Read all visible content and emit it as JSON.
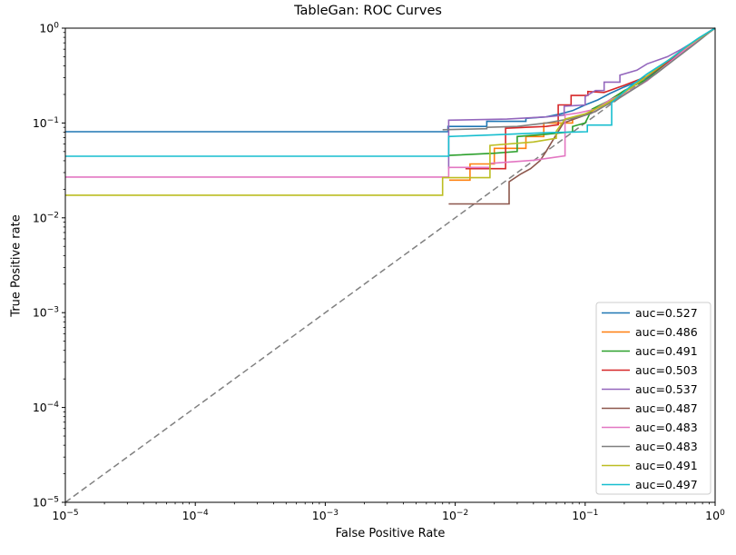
{
  "figure": {
    "title": "TableGan: ROC Curves",
    "xlabel": "False Positive Rate",
    "ylabel": "True Positive rate"
  },
  "chart_data": {
    "type": "line",
    "title": "TableGan: ROC Curves",
    "xlabel": "False Positive Rate",
    "ylabel": "True Positive rate",
    "xscale": "log",
    "yscale": "log",
    "xlim": [
      1e-05,
      1
    ],
    "ylim": [
      1e-05,
      1
    ],
    "x_tick_exponents": [
      -5,
      -4,
      -3,
      -2,
      -1,
      0
    ],
    "y_tick_exponents": [
      0,
      -1,
      -2,
      -3,
      -4,
      -5
    ],
    "grid": false,
    "legend_position": "lower right",
    "axis_color": "#000000",
    "background_color": "#ffffff",
    "reference_line": {
      "name": "chance-diagonal",
      "style": "dashed",
      "color": "#808080",
      "points": [
        [
          1e-05,
          1e-05
        ],
        [
          1,
          1
        ]
      ]
    },
    "series": [
      {
        "name": "auc=0.527",
        "auc": 0.527,
        "color": "#1f77b4",
        "points": [
          [
            1e-05,
            0.081
          ],
          [
            0.0088,
            0.081
          ],
          [
            0.0088,
            0.092
          ],
          [
            0.0175,
            0.092
          ],
          [
            0.0175,
            0.104
          ],
          [
            0.035,
            0.104
          ],
          [
            0.035,
            0.112
          ],
          [
            0.05,
            0.116
          ],
          [
            0.065,
            0.125
          ],
          [
            0.08,
            0.135
          ],
          [
            0.1,
            0.155
          ],
          [
            0.125,
            0.175
          ],
          [
            0.155,
            0.205
          ],
          [
            0.2,
            0.24
          ],
          [
            0.3,
            0.3
          ],
          [
            0.45,
            0.45
          ],
          [
            0.6,
            0.62
          ],
          [
            0.75,
            0.77
          ],
          [
            0.9,
            0.91
          ],
          [
            1,
            1
          ]
        ]
      },
      {
        "name": "auc=0.486",
        "auc": 0.486,
        "color": "#ff7f0e",
        "points": [
          [
            0.009,
            0.025
          ],
          [
            0.013,
            0.025
          ],
          [
            0.013,
            0.037
          ],
          [
            0.02,
            0.037
          ],
          [
            0.02,
            0.054
          ],
          [
            0.035,
            0.054
          ],
          [
            0.035,
            0.072
          ],
          [
            0.048,
            0.072
          ],
          [
            0.048,
            0.1
          ],
          [
            0.08,
            0.1
          ],
          [
            0.08,
            0.112
          ],
          [
            0.105,
            0.125
          ],
          [
            0.135,
            0.155
          ],
          [
            0.175,
            0.19
          ],
          [
            0.25,
            0.26
          ],
          [
            0.4,
            0.42
          ],
          [
            0.55,
            0.57
          ],
          [
            0.7,
            0.72
          ],
          [
            0.85,
            0.86
          ],
          [
            1,
            1
          ]
        ]
      },
      {
        "name": "auc=0.491",
        "auc": 0.491,
        "color": "#2ca02c",
        "points": [
          [
            0.0089,
            0.0455
          ],
          [
            0.02,
            0.048
          ],
          [
            0.03,
            0.05
          ],
          [
            0.03,
            0.072
          ],
          [
            0.05,
            0.076
          ],
          [
            0.08,
            0.081
          ],
          [
            0.08,
            0.092
          ],
          [
            0.1,
            0.1
          ],
          [
            0.113,
            0.14
          ],
          [
            0.15,
            0.17
          ],
          [
            0.2,
            0.22
          ],
          [
            0.3,
            0.29
          ],
          [
            0.45,
            0.45
          ],
          [
            0.6,
            0.62
          ],
          [
            0.75,
            0.77
          ],
          [
            0.9,
            0.91
          ],
          [
            1,
            1
          ]
        ]
      },
      {
        "name": "auc=0.503",
        "auc": 0.503,
        "color": "#d62728",
        "points": [
          [
            0.012,
            0.033
          ],
          [
            0.0244,
            0.033
          ],
          [
            0.0244,
            0.088
          ],
          [
            0.05,
            0.092
          ],
          [
            0.062,
            0.096
          ],
          [
            0.062,
            0.155
          ],
          [
            0.078,
            0.155
          ],
          [
            0.078,
            0.195
          ],
          [
            0.105,
            0.195
          ],
          [
            0.105,
            0.215
          ],
          [
            0.14,
            0.21
          ],
          [
            0.2,
            0.25
          ],
          [
            0.3,
            0.31
          ],
          [
            0.45,
            0.46
          ],
          [
            0.6,
            0.63
          ],
          [
            0.75,
            0.77
          ],
          [
            0.9,
            0.92
          ],
          [
            1,
            1
          ]
        ]
      },
      {
        "name": "auc=0.537",
        "auc": 0.537,
        "color": "#9467bd",
        "points": [
          [
            0.0089,
            0.033
          ],
          [
            0.0089,
            0.107
          ],
          [
            0.025,
            0.11
          ],
          [
            0.05,
            0.116
          ],
          [
            0.069,
            0.121
          ],
          [
            0.069,
            0.15
          ],
          [
            0.1,
            0.155
          ],
          [
            0.1,
            0.19
          ],
          [
            0.12,
            0.22
          ],
          [
            0.14,
            0.22
          ],
          [
            0.14,
            0.27
          ],
          [
            0.185,
            0.27
          ],
          [
            0.185,
            0.32
          ],
          [
            0.25,
            0.36
          ],
          [
            0.3,
            0.42
          ],
          [
            0.43,
            0.5
          ],
          [
            0.55,
            0.6
          ],
          [
            0.7,
            0.73
          ],
          [
            0.85,
            0.87
          ],
          [
            1,
            1
          ]
        ]
      },
      {
        "name": "auc=0.487",
        "auc": 0.487,
        "color": "#8c564b",
        "points": [
          [
            0.0089,
            0.014
          ],
          [
            0.026,
            0.014
          ],
          [
            0.026,
            0.024
          ],
          [
            0.032,
            0.029
          ],
          [
            0.038,
            0.033
          ],
          [
            0.045,
            0.04
          ],
          [
            0.05,
            0.05
          ],
          [
            0.058,
            0.07
          ],
          [
            0.068,
            0.1
          ],
          [
            0.09,
            0.115
          ],
          [
            0.12,
            0.132
          ],
          [
            0.15,
            0.16
          ],
          [
            0.2,
            0.2
          ],
          [
            0.3,
            0.28
          ],
          [
            0.45,
            0.44
          ],
          [
            0.6,
            0.6
          ],
          [
            0.75,
            0.75
          ],
          [
            0.9,
            0.9
          ],
          [
            1,
            1
          ]
        ]
      },
      {
        "name": "auc=0.483",
        "auc": 0.483,
        "color": "#e377c2",
        "points": [
          [
            1e-05,
            0.0269
          ],
          [
            0.0089,
            0.0269
          ],
          [
            0.0089,
            0.034
          ],
          [
            0.0185,
            0.034
          ],
          [
            0.0185,
            0.0375
          ],
          [
            0.04,
            0.0405
          ],
          [
            0.055,
            0.043
          ],
          [
            0.07,
            0.045
          ],
          [
            0.07,
            0.122
          ],
          [
            0.09,
            0.128
          ],
          [
            0.12,
            0.14
          ],
          [
            0.155,
            0.175
          ],
          [
            0.21,
            0.21
          ],
          [
            0.3,
            0.28
          ],
          [
            0.45,
            0.44
          ],
          [
            0.6,
            0.61
          ],
          [
            0.75,
            0.76
          ],
          [
            0.9,
            0.91
          ],
          [
            1,
            1
          ]
        ]
      },
      {
        "name": "auc=0.483",
        "auc": 0.483,
        "color": "#7f7f7f",
        "points": [
          [
            0.008,
            0.085
          ],
          [
            0.0175,
            0.087
          ],
          [
            0.0175,
            0.09
          ],
          [
            0.03,
            0.092
          ],
          [
            0.05,
            0.1
          ],
          [
            0.08,
            0.112
          ],
          [
            0.11,
            0.125
          ],
          [
            0.14,
            0.15
          ],
          [
            0.18,
            0.18
          ],
          [
            0.25,
            0.24
          ],
          [
            0.35,
            0.33
          ],
          [
            0.5,
            0.48
          ],
          [
            0.65,
            0.63
          ],
          [
            0.8,
            0.79
          ],
          [
            0.9,
            0.9
          ],
          [
            1,
            1
          ]
        ]
      },
      {
        "name": "auc=0.491",
        "auc": 0.491,
        "color": "#bcbd22",
        "points": [
          [
            1e-05,
            0.0173
          ],
          [
            0.008,
            0.0173
          ],
          [
            0.008,
            0.0265
          ],
          [
            0.0185,
            0.0265
          ],
          [
            0.0185,
            0.058
          ],
          [
            0.04,
            0.063
          ],
          [
            0.06,
            0.069
          ],
          [
            0.06,
            0.082
          ],
          [
            0.07,
            0.11
          ],
          [
            0.1,
            0.125
          ],
          [
            0.14,
            0.155
          ],
          [
            0.18,
            0.19
          ],
          [
            0.25,
            0.26
          ],
          [
            0.4,
            0.42
          ],
          [
            0.55,
            0.58
          ],
          [
            0.7,
            0.73
          ],
          [
            0.85,
            0.87
          ],
          [
            1,
            1
          ]
        ]
      },
      {
        "name": "auc=0.497",
        "auc": 0.497,
        "color": "#17becf",
        "points": [
          [
            1e-05,
            0.0446
          ],
          [
            0.0089,
            0.0446
          ],
          [
            0.0089,
            0.072
          ],
          [
            0.02,
            0.075
          ],
          [
            0.05,
            0.079
          ],
          [
            0.104,
            0.081
          ],
          [
            0.104,
            0.095
          ],
          [
            0.16,
            0.095
          ],
          [
            0.16,
            0.164
          ],
          [
            0.22,
            0.24
          ],
          [
            0.3,
            0.33
          ],
          [
            0.45,
            0.47
          ],
          [
            0.6,
            0.64
          ],
          [
            0.75,
            0.79
          ],
          [
            0.9,
            0.92
          ],
          [
            1,
            1
          ]
        ]
      }
    ]
  }
}
